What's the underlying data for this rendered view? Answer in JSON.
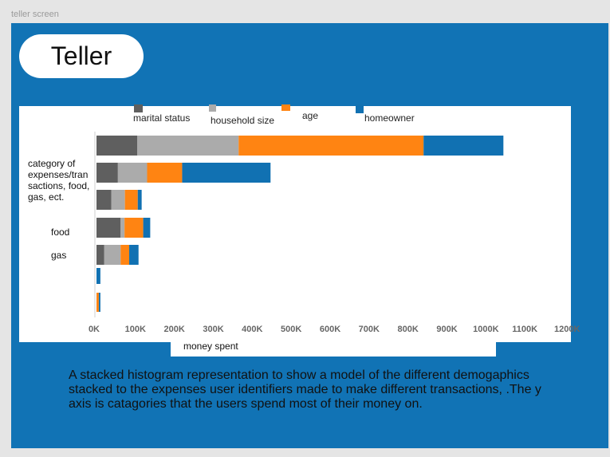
{
  "frame": {
    "label": "teller screen"
  },
  "header": {
    "title": "Teller"
  },
  "chart_data": {
    "type": "bar",
    "orientation": "horizontal",
    "stacked": true,
    "categories": [
      "category of expenses/tran sactions, food, gas, ect.",
      "",
      "",
      "food",
      "gas",
      "",
      ""
    ],
    "series": [
      {
        "name": "marital status",
        "color": "#5f5f5f",
        "values": [
          105000,
          55000,
          38000,
          62000,
          20000,
          0,
          0
        ]
      },
      {
        "name": "household size",
        "color": "#ababab",
        "values": [
          260000,
          75000,
          35000,
          10000,
          42000,
          0,
          0
        ]
      },
      {
        "name": "age",
        "color": "#ff8412",
        "values": [
          475000,
          90000,
          33000,
          48000,
          22000,
          0,
          6000
        ]
      },
      {
        "name": "homeowner",
        "color": "#1171b2",
        "values": [
          205000,
          227000,
          10000,
          18000,
          24000,
          10000,
          4000
        ]
      }
    ],
    "xlabel": "money spent",
    "ylabel": "",
    "xlim": [
      0,
      1200000
    ],
    "x_ticks": [
      "0K",
      "100K",
      "200K",
      "300K",
      "400K",
      "500K",
      "600K",
      "700K",
      "800K",
      "900K",
      "1000K",
      "1100K",
      "1200K"
    ],
    "legend_position": "top",
    "grid": false
  },
  "description": "A stacked histogram representation to show a model of the different demogaphics stacked to the expenses user identifiers made to make different transactions, .The y axis is catagories that the users spend most of their money on."
}
